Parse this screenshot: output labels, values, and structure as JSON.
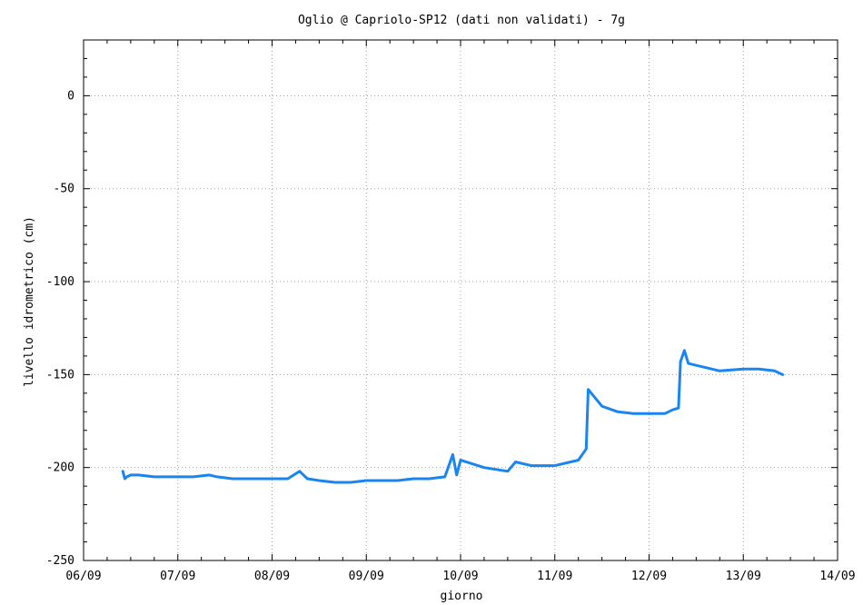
{
  "chart_data": {
    "type": "line",
    "title": "Oglio @ Capriolo-SP12 (dati non validati) - 7g",
    "xlabel": "giorno",
    "ylabel": "livello idrometrico (cm)",
    "ylim": [
      -250,
      30
    ],
    "xlim": [
      "06/09",
      "14/09"
    ],
    "x_ticks": [
      "06/09",
      "07/09",
      "08/09",
      "09/09",
      "10/09",
      "11/09",
      "12/09",
      "13/09",
      "14/09"
    ],
    "y_ticks": [
      0,
      -50,
      -100,
      -150,
      -200,
      -250
    ],
    "grid": true,
    "line_color": "#1a85f0",
    "series": [
      {
        "x": [
          "06/09 10:00",
          "06/09 10:30",
          "06/09 11:00",
          "06/09 12:00",
          "06/09 14:00",
          "06/09 18:00",
          "07/09 00:00",
          "07/09 04:00",
          "07/09 08:00",
          "07/09 10:00",
          "07/09 14:00",
          "07/09 18:00",
          "07/09 22:00",
          "08/09 00:00",
          "08/09 04:00",
          "08/09 07:00",
          "08/09 08:00",
          "08/09 09:00",
          "08/09 12:00",
          "08/09 16:00",
          "08/09 20:00",
          "09/09 00:00",
          "09/09 04:00",
          "09/09 08:00",
          "09/09 12:00",
          "09/09 16:00",
          "09/09 20:00",
          "09/09 22:00",
          "09/09 23:00",
          "10/09 00:00",
          "10/09 06:00",
          "10/09 12:00",
          "10/09 14:00",
          "10/09 18:00",
          "11/09 00:00",
          "11/09 06:00",
          "11/09 08:00",
          "11/09 08:30",
          "11/09 12:00",
          "11/09 16:00",
          "11/09 20:00",
          "12/09 00:00",
          "12/09 04:00",
          "12/09 06:00",
          "12/09 07:30",
          "12/09 08:00",
          "12/09 09:00",
          "12/09 10:00",
          "12/09 14:00",
          "12/09 18:00",
          "13/09 00:00",
          "13/09 04:00",
          "13/09 08:00",
          "13/09 10:00"
        ],
        "values": [
          -202,
          -206,
          -205,
          -204,
          -204,
          -205,
          -205,
          -205,
          -204,
          -205,
          -206,
          -206,
          -206,
          -206,
          -206,
          -202,
          -204,
          -206,
          -207,
          -208,
          -208,
          -207,
          -207,
          -207,
          -206,
          -206,
          -205,
          -193,
          -204,
          -196,
          -200,
          -202,
          -197,
          -199,
          -199,
          -196,
          -190,
          -158,
          -167,
          -170,
          -171,
          -171,
          -171,
          -169,
          -168,
          -143,
          -137,
          -144,
          -146,
          -148,
          -147,
          -147,
          -148,
          -150
        ]
      }
    ]
  }
}
